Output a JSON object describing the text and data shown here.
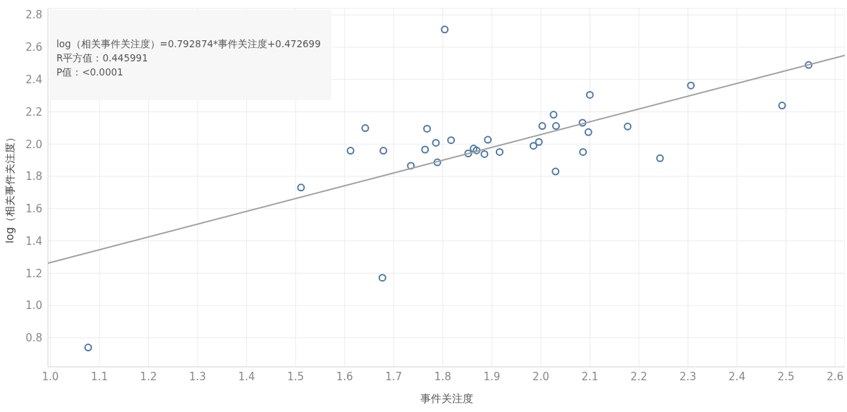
{
  "chart_data": {
    "type": "scatter",
    "xlabel": "事件关注度",
    "ylabel": "log（相关事件关注度）",
    "annotations": [
      "log（相关事件关注度）=0.792874*事件关注度+0.472699",
      "R平方值：0.445991",
      "P值：<0.0001"
    ],
    "xlim": [
      0.995,
      2.62
    ],
    "ylim": [
      0.62,
      2.84
    ],
    "xticks": [
      {
        "value": 1,
        "label": "1.0"
      },
      {
        "value": 1.1,
        "label": "1.1"
      },
      {
        "value": 1.2,
        "label": "1.2"
      },
      {
        "value": 1.3,
        "label": "1.3"
      },
      {
        "value": 1.4,
        "label": "1.4"
      },
      {
        "value": 1.5,
        "label": "1.5"
      },
      {
        "value": 1.6,
        "label": "1.6"
      },
      {
        "value": 1.7,
        "label": "1.7"
      },
      {
        "value": 1.8,
        "label": "1.8"
      },
      {
        "value": 1.9,
        "label": "1.9"
      },
      {
        "value": 2,
        "label": "2.0"
      },
      {
        "value": 2.1,
        "label": "2.1"
      },
      {
        "value": 2.2,
        "label": "2.2"
      },
      {
        "value": 2.3,
        "label": "2.3"
      },
      {
        "value": 2.4,
        "label": "2.4"
      },
      {
        "value": 2.5,
        "label": "2.5"
      },
      {
        "value": 2.6,
        "label": "2.6"
      }
    ],
    "yticks": [
      0.8,
      {
        "value": 1,
        "label": "1.0"
      },
      1.2,
      1.4,
      1.6,
      1.8,
      {
        "value": 2,
        "label": "2.0"
      },
      2.2,
      2.4,
      2.6,
      2.8
    ],
    "grid": true,
    "marker": "circle",
    "series": [
      {
        "color": "#4e79a7",
        "x": [
          1.077,
          1.511,
          1.612,
          1.642,
          1.679,
          1.677,
          1.735,
          1.804,
          1.768,
          1.764,
          1.786,
          1.789,
          1.817,
          1.852,
          1.863,
          1.869,
          1.885,
          1.892,
          1.916,
          1.985,
          1.996,
          2.003,
          2.026,
          2.031,
          2.03,
          2.085,
          2.086,
          2.097,
          2.1,
          2.177,
          2.243,
          2.306,
          2.492,
          2.546
        ],
        "values": [
          0.74,
          1.731,
          1.959,
          2.099,
          1.959,
          1.172,
          1.866,
          2.71,
          2.095,
          1.966,
          2.008,
          1.887,
          2.024,
          1.942,
          1.972,
          1.961,
          1.938,
          2.027,
          1.951,
          1.989,
          2.013,
          2.112,
          2.182,
          2.112,
          1.83,
          2.132,
          1.951,
          2.074,
          2.305,
          2.109,
          1.912,
          2.363,
          2.239,
          2.49
        ]
      },
      {
        "type": "line",
        "marker": "none",
        "color": "#a0a0a0",
        "x": [
          0.995,
          2.62
        ],
        "values": [
          1.262,
          2.55
        ]
      }
    ]
  }
}
